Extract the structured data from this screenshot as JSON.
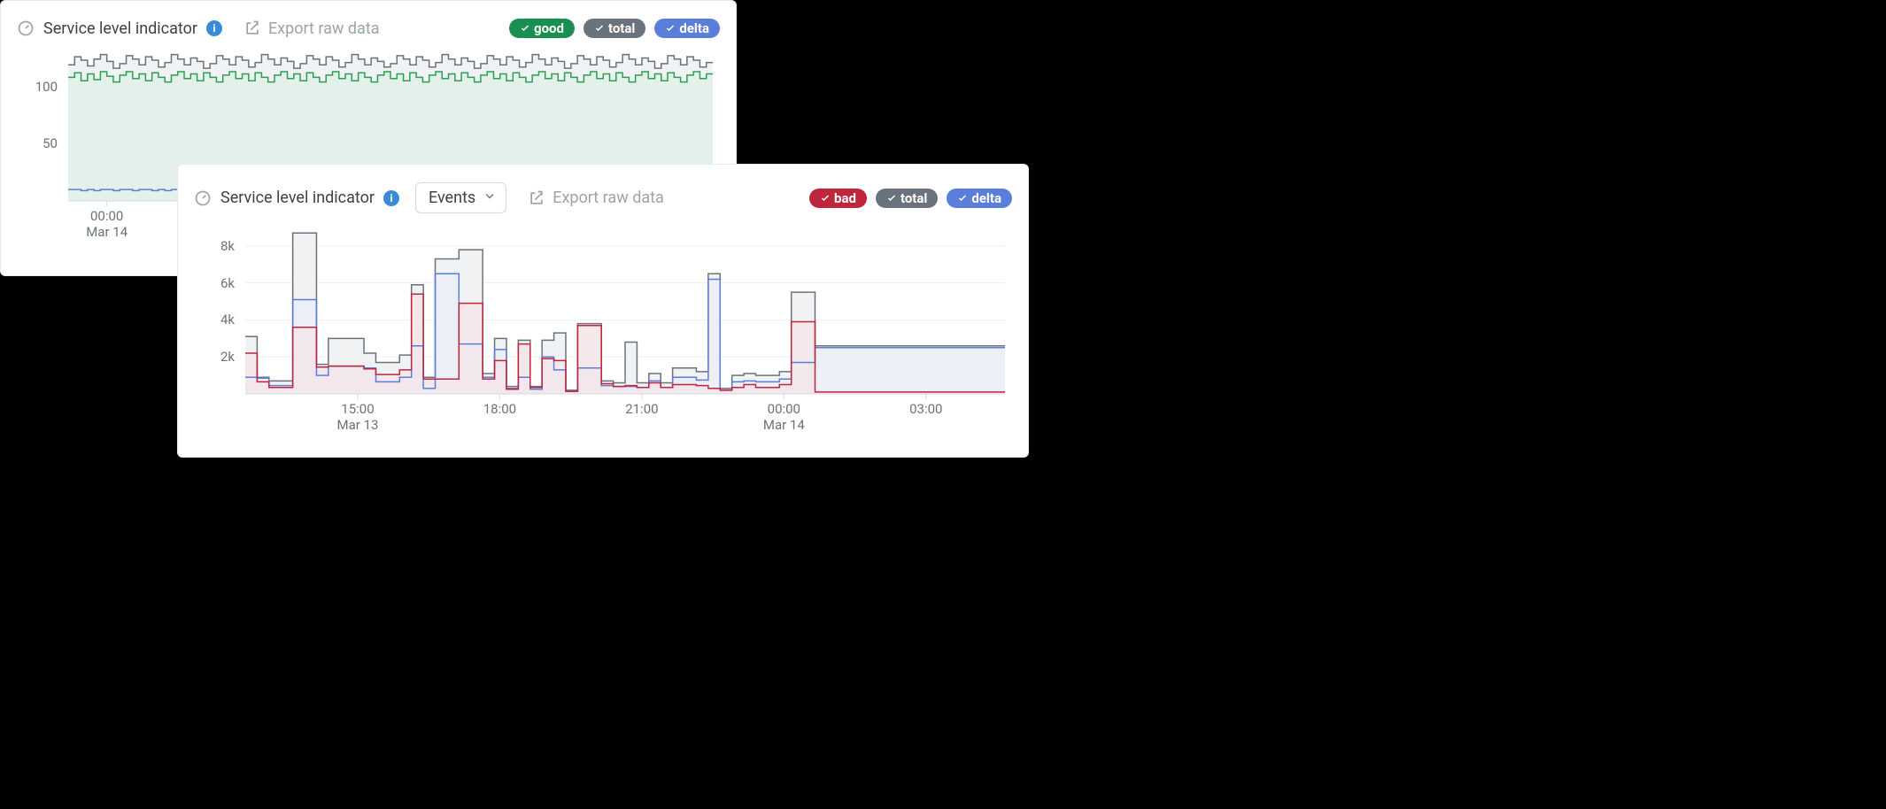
{
  "background_color": "#000000",
  "card_bg": "#ffffff",
  "card_border": "#e7e9ea",
  "muted_color": "#9aa4ac",
  "card1": {
    "title": "Service level indicator",
    "export_label": "Export raw data",
    "pills": [
      {
        "label": "good",
        "color": "#198f51"
      },
      {
        "label": "total",
        "color": "#6a737b"
      },
      {
        "label": "delta",
        "color": "#5b7edb"
      }
    ],
    "chart": {
      "type": "step-area",
      "grid_color": "#eef0f1",
      "axis_color": "#d5d9dc",
      "yticks": [
        50,
        100
      ],
      "y_domain": [
        0,
        130
      ],
      "xticks": [
        {
          "label": "00:00",
          "sub": "Mar 14",
          "x": 0.06
        }
      ],
      "series": {
        "total": {
          "stroke": "#6a737b",
          "fill": "#f1f2f3",
          "opacity": 1,
          "width": 1.5,
          "y": [
            119,
            126,
            123,
            118,
            124,
            128,
            122,
            116,
            120,
            127,
            124,
            119,
            126,
            123,
            117,
            121,
            128,
            124,
            119,
            125,
            122,
            116,
            120,
            127,
            124,
            119,
            126,
            123,
            117,
            121,
            128,
            124,
            119,
            125,
            122,
            116,
            120,
            127,
            124,
            119,
            126,
            123,
            117,
            121,
            128,
            124,
            119,
            125,
            122,
            117,
            120,
            127,
            124,
            119,
            126,
            123,
            117,
            121,
            128,
            124,
            119,
            125,
            122,
            116,
            120,
            127,
            124,
            119,
            126,
            123,
            117,
            121,
            128,
            124,
            119,
            125,
            122,
            116,
            120,
            127,
            124,
            119,
            126,
            123,
            117,
            121,
            128,
            124,
            119,
            125,
            122,
            116,
            120,
            127,
            124,
            119,
            126,
            123,
            117,
            121
          ]
        },
        "good": {
          "stroke": "#2aa054",
          "fill": "#e3f1ea",
          "opacity": 1,
          "width": 1.5,
          "y": [
            108,
            112,
            105,
            111,
            106,
            113,
            109,
            104,
            110,
            113,
            107,
            111,
            105,
            112,
            108,
            104,
            110,
            113,
            107,
            111,
            105,
            112,
            108,
            104,
            110,
            113,
            107,
            111,
            105,
            112,
            108,
            104,
            110,
            113,
            107,
            111,
            105,
            112,
            108,
            104,
            110,
            113,
            107,
            111,
            105,
            112,
            108,
            104,
            110,
            113,
            107,
            111,
            105,
            112,
            108,
            104,
            110,
            113,
            107,
            111,
            105,
            112,
            108,
            104,
            110,
            113,
            107,
            111,
            105,
            112,
            108,
            104,
            110,
            113,
            107,
            111,
            105,
            112,
            108,
            104,
            110,
            113,
            107,
            111,
            105,
            112,
            108,
            104,
            110,
            113,
            107,
            111,
            105,
            112,
            108,
            104,
            110,
            113,
            107,
            111
          ]
        },
        "delta": {
          "stroke": "#5b7edb",
          "fill": "none",
          "opacity": 1,
          "width": 1.5,
          "y": [
            10,
            10,
            9,
            10,
            9,
            10,
            10,
            9,
            10,
            10,
            9,
            10,
            10,
            9,
            10,
            9,
            10,
            10,
            9,
            10,
            10,
            9,
            10,
            10,
            9,
            10,
            10,
            9,
            10,
            9,
            10,
            10,
            9,
            10,
            10,
            9,
            10,
            10,
            9,
            10,
            10,
            9,
            10,
            9,
            10,
            10,
            9,
            10,
            10,
            9,
            10,
            10,
            9,
            10,
            10,
            9,
            10,
            9,
            10,
            10,
            9,
            10,
            10,
            9,
            10,
            10,
            9,
            10,
            10,
            9,
            10,
            9,
            10,
            10,
            9,
            10,
            10,
            9,
            10,
            10,
            9,
            10,
            10,
            9,
            10,
            9,
            10,
            10,
            9,
            10,
            10,
            9,
            10,
            10,
            9,
            10,
            10,
            9,
            10,
            10
          ]
        }
      }
    }
  },
  "card2": {
    "title": "Service level indicator",
    "dropdown": "Events",
    "export_label": "Export raw data",
    "pills": [
      {
        "label": "bad",
        "color": "#c0263b"
      },
      {
        "label": "total",
        "color": "#6a737b"
      },
      {
        "label": "delta",
        "color": "#5b7edb"
      }
    ],
    "chart": {
      "type": "step-area",
      "grid_color": "#eef0f1",
      "axis_color": "#d5d9dc",
      "yticks": [
        2000,
        4000,
        6000,
        8000
      ],
      "ytick_labels": [
        "2k",
        "4k",
        "6k",
        "8k"
      ],
      "y_domain": [
        0,
        9000
      ],
      "xticks": [
        {
          "label": "15:00",
          "sub": "Mar 13",
          "x": 0.148
        },
        {
          "label": "18:00",
          "sub": "",
          "x": 0.335
        },
        {
          "label": "21:00",
          "sub": "",
          "x": 0.522
        },
        {
          "label": "00:00",
          "sub": "Mar 14",
          "x": 0.709
        },
        {
          "label": "03:00",
          "sub": "",
          "x": 0.896
        }
      ],
      "series": {
        "total": {
          "stroke": "#6a737b",
          "fill": "#f1f2f3",
          "opacity": 1,
          "width": 1.5,
          "y": [
            3100,
            900,
            700,
            700,
            8700,
            8700,
            1600,
            3000,
            3000,
            3000,
            2200,
            1700,
            1700,
            2100,
            5900,
            900,
            7300,
            7300,
            7800,
            7800,
            1100,
            3000,
            400,
            2900,
            400,
            2900,
            3300,
            200,
            3800,
            3800,
            700,
            600,
            2800,
            600,
            1100,
            600,
            1400,
            1400,
            1200,
            6500,
            300,
            1000,
            1100,
            1000,
            1000,
            1200,
            5500,
            5500,
            2600,
            2600,
            2600,
            2600,
            2600,
            2600,
            2600,
            2600,
            2600,
            2600,
            2600,
            2600,
            2600,
            2600,
            2600,
            2600
          ]
        },
        "delta": {
          "stroke": "#5b7edb",
          "fill": "#e7ecf8",
          "opacity": 0.55,
          "width": 1.5,
          "y": [
            900,
            850,
            450,
            450,
            5100,
            5100,
            1000,
            1500,
            1500,
            1500,
            1400,
            650,
            650,
            900,
            2600,
            300,
            6500,
            6500,
            2700,
            2700,
            900,
            2400,
            300,
            900,
            250,
            2000,
            1300,
            150,
            1400,
            1400,
            450,
            400,
            400,
            350,
            700,
            350,
            900,
            900,
            750,
            6200,
            200,
            650,
            700,
            650,
            650,
            800,
            1700,
            1700,
            2500,
            2500,
            2500,
            2500,
            2500,
            2500,
            2500,
            2500,
            2500,
            2500,
            2500,
            2500,
            2500,
            2500,
            2500,
            2500
          ]
        },
        "bad": {
          "stroke": "#c0263b",
          "fill": "#f5e0e4",
          "opacity": 0.55,
          "width": 1.5,
          "y": [
            2200,
            650,
            350,
            350,
            3600,
            3600,
            1450,
            1500,
            1500,
            1500,
            1350,
            1050,
            1050,
            1300,
            5400,
            800,
            800,
            800,
            4900,
            4900,
            800,
            1800,
            250,
            2700,
            350,
            1900,
            1800,
            130,
            3700,
            3700,
            550,
            400,
            450,
            350,
            600,
            350,
            500,
            500,
            450,
            300,
            200,
            350,
            500,
            350,
            350,
            500,
            3900,
            3900,
            100,
            100,
            100,
            100,
            100,
            100,
            100,
            100,
            100,
            100,
            100,
            100,
            100,
            100,
            100,
            100
          ]
        }
      }
    }
  }
}
